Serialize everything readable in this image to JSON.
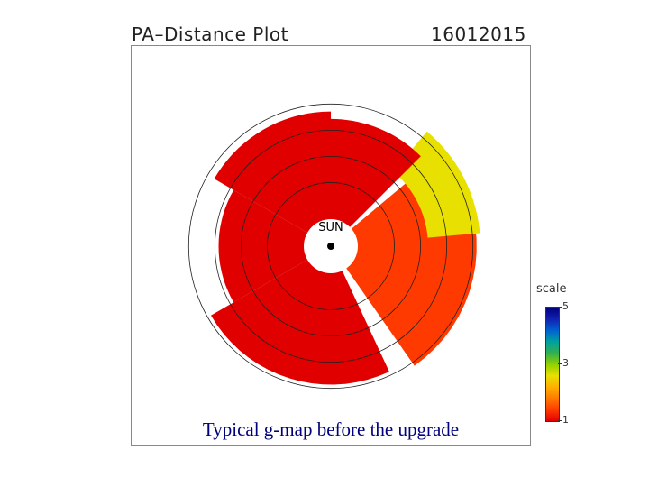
{
  "header": {
    "title": "PA–Distance Plot",
    "date": "16012015"
  },
  "caption": "Typical g-map before the upgrade",
  "sun_label": "SUN",
  "scale": {
    "label": "scale",
    "ticks": [
      {
        "label": "5",
        "value": 5
      },
      {
        "label": "3",
        "value": 3
      },
      {
        "label": "1",
        "value": 1
      }
    ],
    "colors": [
      "#e00000",
      "#ff3a00",
      "#ff7a00",
      "#ffb000",
      "#e8e000",
      "#90d000",
      "#30b050",
      "#00a0a0",
      "#0060d0",
      "#1020b0",
      "#000080"
    ]
  },
  "chart_data": {
    "type": "heatmap",
    "title": "PA–Distance Plot",
    "subtitle": "16012015",
    "projection": "polar",
    "center_label": "SUN",
    "colorbar": {
      "label": "scale",
      "min": 1,
      "max": 5,
      "ticks": [
        1,
        3,
        5
      ]
    },
    "sectors": [
      {
        "pa_start": 120,
        "pa_end": 205,
        "r_inner": 0.35,
        "r_outer": 1.85,
        "g": 1.1
      },
      {
        "pa_start": 215,
        "pa_end": 310,
        "r_inner": 0.35,
        "r_outer": 1.95,
        "g": 1.4
      },
      {
        "pa_start": 275,
        "pa_end": 320,
        "r_inner": 1.3,
        "r_outer": 2.0,
        "g": 2.6
      },
      {
        "pa_start": 315,
        "pa_end": 360,
        "r_inner": 0.35,
        "r_outer": 1.7,
        "g": 1.2
      },
      {
        "pa_start": 0,
        "pa_end": 60,
        "r_inner": 0.35,
        "r_outer": 1.8,
        "g": 1.1
      },
      {
        "pa_start": 60,
        "pa_end": 120,
        "r_inner": 0.35,
        "r_outer": 1.5,
        "g": 1.0
      }
    ]
  }
}
